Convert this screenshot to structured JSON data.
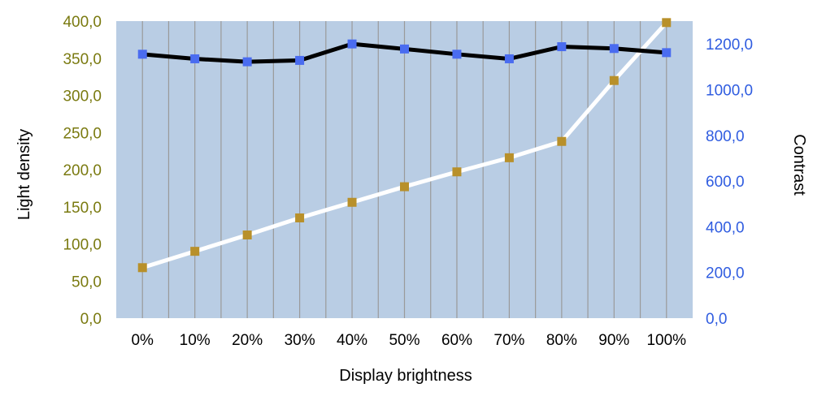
{
  "chart_data": {
    "type": "line",
    "xlabel": "Display brightness",
    "ylabel_left": "Light density",
    "ylabel_right": "Contrast",
    "categories": [
      "0%",
      "10%",
      "20%",
      "30%",
      "40%",
      "50%",
      "60%",
      "70%",
      "80%",
      "90%",
      "100%"
    ],
    "y_left_ticks": [
      "0,0",
      "50,0",
      "100,0",
      "150,0",
      "200,0",
      "250,0",
      "300,0",
      "350,0",
      "400,0"
    ],
    "y_right_ticks": [
      "0,0",
      "200,0",
      "400,0",
      "600,0",
      "800,0",
      "1000,0",
      "1200,0"
    ],
    "ylim_left": [
      0,
      400
    ],
    "ylim_right": [
      0,
      1300
    ],
    "grid": "vertical",
    "series": [
      {
        "axis": "left",
        "values": [
          68,
          90,
          112,
          135,
          156,
          177,
          197,
          216,
          238,
          320,
          398
        ],
        "line_color": "#ffffff",
        "marker_color": "#b8902a"
      },
      {
        "axis": "right",
        "values": [
          1155,
          1135,
          1122,
          1128,
          1200,
          1178,
          1155,
          1135,
          1188,
          1180,
          1162
        ],
        "line_color": "#000000",
        "marker_color": "#4a6cf0"
      }
    ],
    "colors": {
      "plot_bg": "#b9cde4",
      "grid": "#9a9a9a",
      "left_tick": "#7a7a10",
      "right_tick": "#2f5ce0"
    }
  }
}
